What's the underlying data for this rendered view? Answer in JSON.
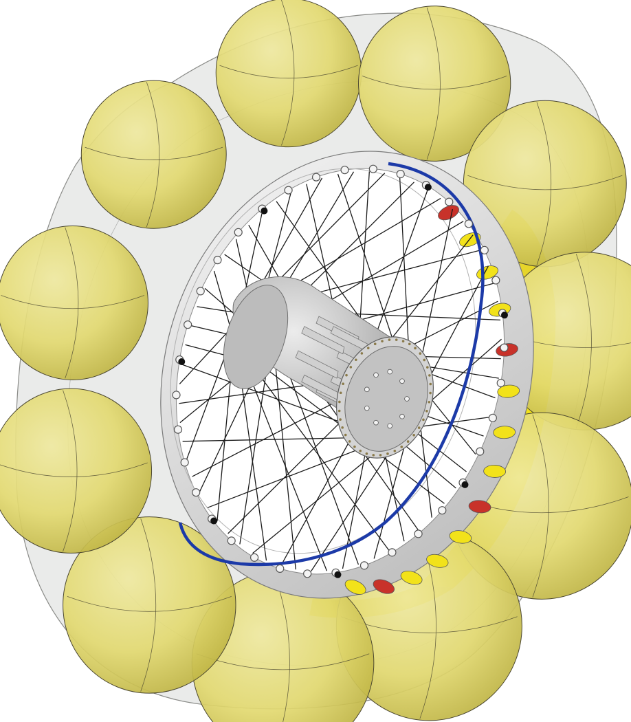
{
  "image": {
    "subject": "wheel-cad-render",
    "background_color": "#ffffff"
  },
  "colors": {
    "shell_fill": "#d9dad8",
    "shell_stroke": "#8a8b88",
    "bladder_fill": "#e4dc72",
    "bladder_shade": "#b9ae3c",
    "bladder_line": "#4a4630",
    "rim_fill": "#eeeeee",
    "rim_shade": "#a9aaa8",
    "hub_fill": "#c9c9c9",
    "hub_shade": "#8e8e8e",
    "spoke": "#1a1a1a",
    "blue_band": "#1c3aa8",
    "yellow_slot": "#f2e21a",
    "red_slot": "#c8322a"
  },
  "counts": {
    "outer_bladders": 11,
    "spokes": 64,
    "rim_eyelets": 36,
    "hub_bolts": 9
  }
}
